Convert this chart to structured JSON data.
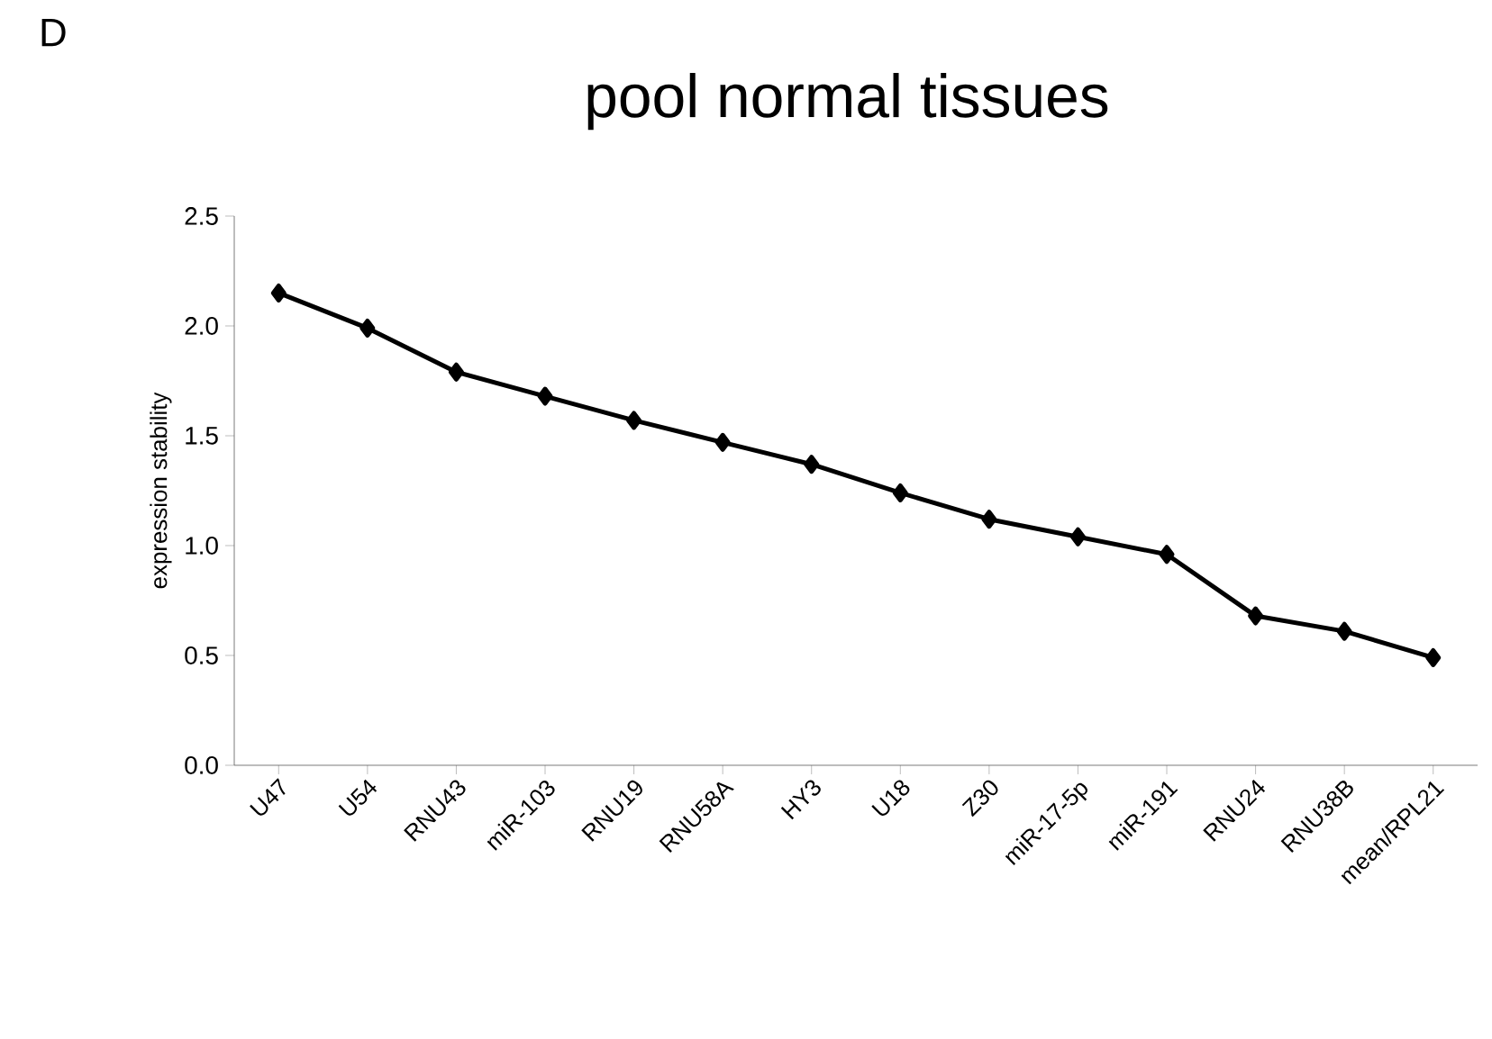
{
  "chart_data": {
    "type": "line",
    "title": "pool normal tissues",
    "ylabel": "expression stability",
    "annotations": [
      "D"
    ],
    "categories": [
      "U47",
      "U54",
      "RNU43",
      "miR-103",
      "RNU19",
      "RNU58A",
      "HY3",
      "U18",
      "Z30",
      "miR-17-5p",
      "miR-191",
      "RNU24",
      "RNU38B",
      "mean/RPL21"
    ],
    "series": [
      {
        "color": "#000000",
        "values": [
          2.15,
          1.99,
          1.79,
          1.68,
          1.57,
          1.47,
          1.37,
          1.24,
          1.12,
          1.04,
          0.96,
          0.68,
          0.61,
          0.49
        ]
      }
    ],
    "ylim": [
      0,
      2.5
    ],
    "yticks": [
      {
        "value": 0,
        "label": "0.0"
      },
      0.5,
      {
        "value": 1,
        "label": "1.0"
      },
      1.5,
      {
        "value": 2,
        "label": "2.0"
      },
      2.5
    ],
    "marker": "diamond",
    "line_style": "solid",
    "grid": false
  }
}
